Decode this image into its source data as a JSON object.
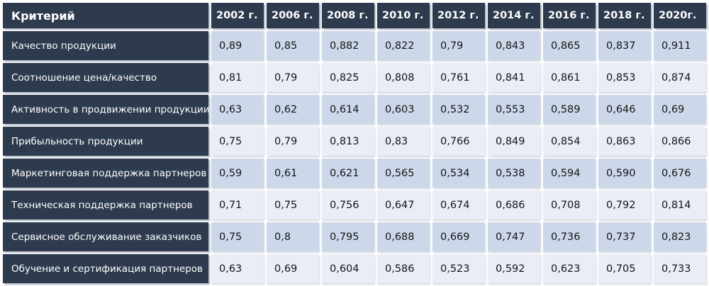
{
  "chart_data": {
    "type": "table",
    "header": [
      "Критерий",
      "2002 г.",
      "2006 г.",
      "2008 г.",
      "2010 г.",
      "2012 г.",
      "2014 г.",
      "2016 г.",
      "2018 г.",
      "2020г."
    ],
    "rows": [
      {
        "label": "Качество продукции",
        "values": [
          "0,89",
          "0,85",
          "0,882",
          "0,822",
          "0,79",
          "0,843",
          "0,865",
          "0,837",
          "0,911"
        ]
      },
      {
        "label": "Соотношение цена/качество",
        "values": [
          "0,81",
          "0,79",
          "0,825",
          "0,808",
          "0,761",
          "0,841",
          "0,861",
          "0,853",
          "0,874"
        ]
      },
      {
        "label": "Активность в продвижении продукции",
        "values": [
          "0,63",
          "0,62",
          "0,614",
          "0,603",
          "0,532",
          "0,553",
          "0,589",
          "0,646",
          "0,69"
        ]
      },
      {
        "label": "Прибыльность продукции",
        "values": [
          "0,75",
          "0,79",
          "0,813",
          "0,83",
          "0,766",
          "0,849",
          "0,854",
          "0,863",
          "0,866"
        ]
      },
      {
        "label": "Маркетинговая поддержка партнеров",
        "values": [
          "0,59",
          "0,61",
          "0,621",
          "0,565",
          "0,534",
          "0,538",
          "0,594",
          "0,590",
          "0,676"
        ]
      },
      {
        "label": "Техническая поддержка партнеров",
        "values": [
          "0,71",
          "0,75",
          "0,756",
          "0,647",
          "0,674",
          "0,686",
          "0,708",
          "0,792",
          "0,814"
        ]
      },
      {
        "label": "Сервисное обслуживание заказчиков",
        "values": [
          "0,75",
          "0,8",
          "0,795",
          "0,688",
          "0,669",
          "0,747",
          "0,736",
          "0,737",
          "0,823"
        ]
      },
      {
        "label": "Обучение и сертификация партнеров",
        "values": [
          "0,63",
          "0,69",
          "0,604",
          "0,586",
          "0,523",
          "0,592",
          "0,623",
          "0,705",
          "0,733"
        ]
      }
    ]
  },
  "colors": {
    "header_bg": "#2e3b4e",
    "row_band_dark": "#ccd8ea",
    "row_band_light": "#e9edf6",
    "separator": "#ffffff",
    "header_text": "#ffffff",
    "cell_text": "#151515"
  }
}
